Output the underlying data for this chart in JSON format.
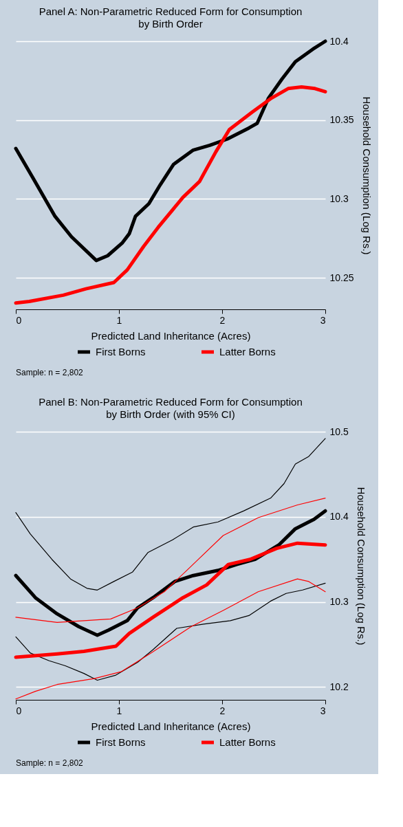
{
  "chart_data": [
    {
      "type": "line",
      "title": "Panel A: Non-Parametric Reduced Form for Consumption\nby Birth Order",
      "xlabel": "Predicted Land Inheritance (Acres)",
      "ylabel": "Household Consumption (Log Rs.)",
      "xlim": [
        0,
        3
      ],
      "xticks": [
        0,
        1,
        2,
        3
      ],
      "ylim": [
        10.23,
        10.4
      ],
      "yticks": [
        10.25,
        10.3,
        10.35,
        10.4
      ],
      "grid": "y",
      "legend": "bottom",
      "annotations": [
        "Sample: n = 2,802"
      ],
      "series": [
        {
          "name": "First Borns",
          "color": "#000000",
          "x": [
            0,
            0.16,
            0.38,
            0.54,
            0.78,
            0.89,
            1.03,
            1.1,
            1.16,
            1.29,
            1.4,
            1.53,
            1.72,
            1.88,
            2.05,
            2.26,
            2.34,
            2.45,
            2.58,
            2.71,
            2.88,
            3
          ],
          "values": [
            10.332,
            10.314,
            10.289,
            10.276,
            10.261,
            10.264,
            10.272,
            10.278,
            10.289,
            10.297,
            10.309,
            10.322,
            10.331,
            10.334,
            10.338,
            10.345,
            10.348,
            10.364,
            10.376,
            10.387,
            10.395,
            10.4
          ]
        },
        {
          "name": "Latter Borns",
          "color": "#ff0000",
          "x": [
            0,
            0.13,
            0.46,
            0.68,
            0.95,
            1.08,
            1.24,
            1.38,
            1.62,
            1.78,
            1.94,
            2.07,
            2.29,
            2.48,
            2.64,
            2.77,
            2.9,
            3
          ],
          "values": [
            10.234,
            10.235,
            10.239,
            10.243,
            10.247,
            10.255,
            10.27,
            10.282,
            10.301,
            10.311,
            10.33,
            10.344,
            10.355,
            10.364,
            10.37,
            10.371,
            10.37,
            10.368
          ]
        }
      ]
    },
    {
      "type": "line",
      "title": "Panel B: Non-Parametric Reduced Form for Consumption\nby Birth Order (with 95% CI)",
      "xlabel": "Predicted Land Inheritance (Acres)",
      "ylabel": "Household Consumption (Log Rs.)",
      "xlim": [
        0,
        3
      ],
      "xticks": [
        0,
        1,
        2,
        3
      ],
      "ylim": [
        10.185,
        10.5
      ],
      "yticks": [
        10.2,
        10.3,
        10.4,
        10.5
      ],
      "grid": "y",
      "legend": "bottom",
      "annotations": [
        "Sample: n = 2,802"
      ],
      "series": [
        {
          "name": "First Borns",
          "color": "#000000",
          "x": [
            0,
            0.19,
            0.4,
            0.61,
            0.79,
            0.9,
            1.08,
            1.18,
            1.33,
            1.54,
            1.72,
            1.96,
            2.14,
            2.32,
            2.55,
            2.71,
            2.89,
            3
          ],
          "values": [
            10.331,
            10.305,
            10.286,
            10.271,
            10.261,
            10.267,
            10.278,
            10.293,
            10.305,
            10.324,
            10.331,
            10.337,
            10.344,
            10.35,
            10.367,
            10.386,
            10.397,
            10.407
          ]
        },
        {
          "color": "#000000",
          "x": [
            0,
            0.14,
            0.35,
            0.53,
            0.69,
            0.79,
            0.95,
            1.13,
            1.28,
            1.52,
            1.72,
            1.96,
            2.21,
            2.47,
            2.6,
            2.71,
            2.84,
            3
          ],
          "values": [
            10.405,
            10.38,
            10.35,
            10.327,
            10.316,
            10.314,
            10.324,
            10.335,
            10.358,
            10.373,
            10.388,
            10.394,
            10.407,
            10.422,
            10.439,
            10.462,
            10.471,
            10.492
          ]
        },
        {
          "color": "#000000",
          "x": [
            0,
            0.14,
            0.32,
            0.48,
            0.66,
            0.79,
            0.97,
            1.18,
            1.33,
            1.56,
            1.82,
            2.08,
            2.26,
            2.47,
            2.62,
            2.78,
            3
          ],
          "values": [
            10.259,
            10.24,
            10.231,
            10.225,
            10.216,
            10.208,
            10.214,
            10.229,
            10.244,
            10.269,
            10.274,
            10.278,
            10.284,
            10.301,
            10.31,
            10.314,
            10.322
          ]
        },
        {
          "name": "Latter Borns",
          "color": "#ff0000",
          "x": [
            0,
            0.4,
            0.66,
            0.97,
            1.1,
            1.33,
            1.62,
            1.85,
            2.06,
            2.27,
            2.53,
            2.73,
            3
          ],
          "values": [
            10.235,
            10.239,
            10.242,
            10.248,
            10.263,
            10.282,
            10.305,
            10.32,
            10.344,
            10.35,
            10.363,
            10.369,
            10.367
          ]
        },
        {
          "color": "#ff0000",
          "x": [
            0,
            0.4,
            0.92,
            1.18,
            1.44,
            1.7,
            2.01,
            2.35,
            2.73,
            3
          ],
          "values": [
            10.282,
            10.276,
            10.28,
            10.293,
            10.312,
            10.342,
            10.378,
            10.399,
            10.414,
            10.422
          ]
        },
        {
          "color": "#ff0000",
          "x": [
            0,
            0.19,
            0.4,
            0.76,
            1.02,
            1.31,
            1.7,
            2.01,
            2.35,
            2.73,
            2.84,
            3
          ],
          "values": [
            10.186,
            10.195,
            10.203,
            10.21,
            10.218,
            10.24,
            10.271,
            10.29,
            10.312,
            10.327,
            10.324,
            10.312
          ]
        }
      ]
    }
  ]
}
